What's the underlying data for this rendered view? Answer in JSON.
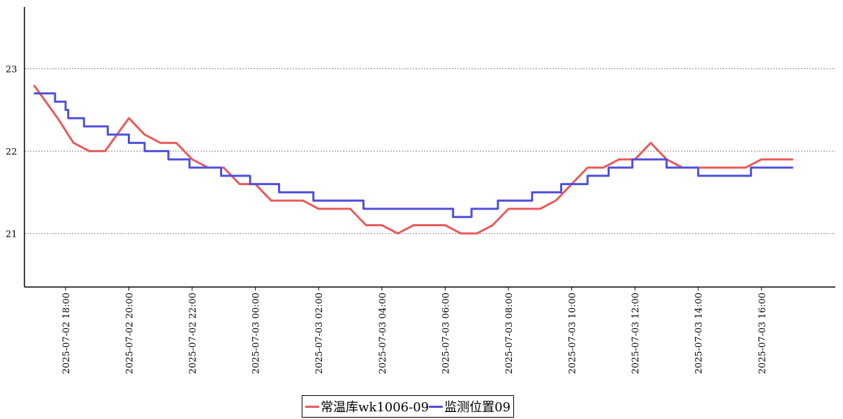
{
  "chart_data": {
    "type": "line",
    "title": "",
    "xlabel": "",
    "ylabel": "",
    "ylim": [
      20.35,
      23.75
    ],
    "yticks": [
      21,
      22,
      23
    ],
    "xlim": [
      "2025-07-02 16:42",
      "2025-07-03 18:20"
    ],
    "xticks": [
      {
        "t": "2025-07-02 18:00",
        "label": "2025-07-02 18:00"
      },
      {
        "t": "2025-07-02 20:00",
        "label": "2025-07-02 20:00"
      },
      {
        "t": "2025-07-02 22:00",
        "label": "2025-07-02 22:00"
      },
      {
        "t": "2025-07-03 00:00",
        "label": "2025-07-03 00:00"
      },
      {
        "t": "2025-07-03 02:00",
        "label": "2025-07-03 02:00"
      },
      {
        "t": "2025-07-03 04:00",
        "label": "2025-07-03 04:00"
      },
      {
        "t": "2025-07-03 06:00",
        "label": "2025-07-03 06:00"
      },
      {
        "t": "2025-07-03 08:00",
        "label": "2025-07-03 08:00"
      },
      {
        "t": "2025-07-03 10:00",
        "label": "2025-07-03 10:00"
      },
      {
        "t": "2025-07-03 12:00",
        "label": "2025-07-03 12:00"
      },
      {
        "t": "2025-07-03 14:00",
        "label": "2025-07-03 14:00"
      },
      {
        "t": "2025-07-03 16:00",
        "label": "2025-07-03 16:00"
      }
    ],
    "grid": {
      "horizontal": true,
      "vertical": false,
      "style": "dotted"
    },
    "legend": {
      "placement": "bottom-center"
    },
    "series": [
      {
        "name": "常温库wk1006-09",
        "color": "#e85a5a",
        "step": false,
        "points": [
          [
            "2025-07-02 17:00",
            22.8
          ],
          [
            "2025-07-02 17:45",
            22.4
          ],
          [
            "2025-07-02 18:15",
            22.1
          ],
          [
            "2025-07-02 18:45",
            22.0
          ],
          [
            "2025-07-02 19:15",
            22.0
          ],
          [
            "2025-07-02 20:00",
            22.4
          ],
          [
            "2025-07-02 20:30",
            22.2
          ],
          [
            "2025-07-02 21:00",
            22.1
          ],
          [
            "2025-07-02 21:30",
            22.1
          ],
          [
            "2025-07-02 22:00",
            21.9
          ],
          [
            "2025-07-02 22:30",
            21.8
          ],
          [
            "2025-07-02 23:00",
            21.8
          ],
          [
            "2025-07-02 23:30",
            21.6
          ],
          [
            "2025-07-03 00:00",
            21.6
          ],
          [
            "2025-07-03 00:30",
            21.4
          ],
          [
            "2025-07-03 01:30",
            21.4
          ],
          [
            "2025-07-03 02:00",
            21.3
          ],
          [
            "2025-07-03 03:00",
            21.3
          ],
          [
            "2025-07-03 03:30",
            21.1
          ],
          [
            "2025-07-03 04:00",
            21.1
          ],
          [
            "2025-07-03 04:30",
            21.0
          ],
          [
            "2025-07-03 05:00",
            21.1
          ],
          [
            "2025-07-03 06:00",
            21.1
          ],
          [
            "2025-07-03 06:30",
            21.0
          ],
          [
            "2025-07-03 07:00",
            21.0
          ],
          [
            "2025-07-03 07:30",
            21.1
          ],
          [
            "2025-07-03 08:00",
            21.3
          ],
          [
            "2025-07-03 09:00",
            21.3
          ],
          [
            "2025-07-03 09:30",
            21.4
          ],
          [
            "2025-07-03 10:00",
            21.6
          ],
          [
            "2025-07-03 10:30",
            21.8
          ],
          [
            "2025-07-03 11:00",
            21.8
          ],
          [
            "2025-07-03 11:30",
            21.9
          ],
          [
            "2025-07-03 12:00",
            21.9
          ],
          [
            "2025-07-03 12:30",
            22.1
          ],
          [
            "2025-07-03 13:00",
            21.9
          ],
          [
            "2025-07-03 13:30",
            21.8
          ],
          [
            "2025-07-03 15:30",
            21.8
          ],
          [
            "2025-07-03 16:00",
            21.9
          ],
          [
            "2025-07-03 17:00",
            21.9
          ]
        ]
      },
      {
        "name": "监测位置09",
        "color": "#4f4fdc",
        "step": true,
        "points": [
          [
            "2025-07-02 17:00",
            22.7
          ],
          [
            "2025-07-02 17:40",
            22.6
          ],
          [
            "2025-07-02 18:00",
            22.5
          ],
          [
            "2025-07-02 18:05",
            22.4
          ],
          [
            "2025-07-02 18:35",
            22.3
          ],
          [
            "2025-07-02 19:20",
            22.2
          ],
          [
            "2025-07-02 20:00",
            22.1
          ],
          [
            "2025-07-02 20:30",
            22.0
          ],
          [
            "2025-07-02 21:15",
            21.9
          ],
          [
            "2025-07-02 21:55",
            21.8
          ],
          [
            "2025-07-02 22:55",
            21.7
          ],
          [
            "2025-07-02 23:50",
            21.6
          ],
          [
            "2025-07-03 00:45",
            21.5
          ],
          [
            "2025-07-03 01:50",
            21.4
          ],
          [
            "2025-07-03 03:25",
            21.3
          ],
          [
            "2025-07-03 06:15",
            21.2
          ],
          [
            "2025-07-03 06:50",
            21.3
          ],
          [
            "2025-07-03 07:40",
            21.4
          ],
          [
            "2025-07-03 08:45",
            21.5
          ],
          [
            "2025-07-03 09:40",
            21.6
          ],
          [
            "2025-07-03 10:30",
            21.7
          ],
          [
            "2025-07-03 11:10",
            21.8
          ],
          [
            "2025-07-03 11:55",
            21.9
          ],
          [
            "2025-07-03 13:00",
            21.8
          ],
          [
            "2025-07-03 14:00",
            21.7
          ],
          [
            "2025-07-03 15:40",
            21.8
          ],
          [
            "2025-07-03 17:00",
            21.8
          ]
        ]
      }
    ]
  }
}
